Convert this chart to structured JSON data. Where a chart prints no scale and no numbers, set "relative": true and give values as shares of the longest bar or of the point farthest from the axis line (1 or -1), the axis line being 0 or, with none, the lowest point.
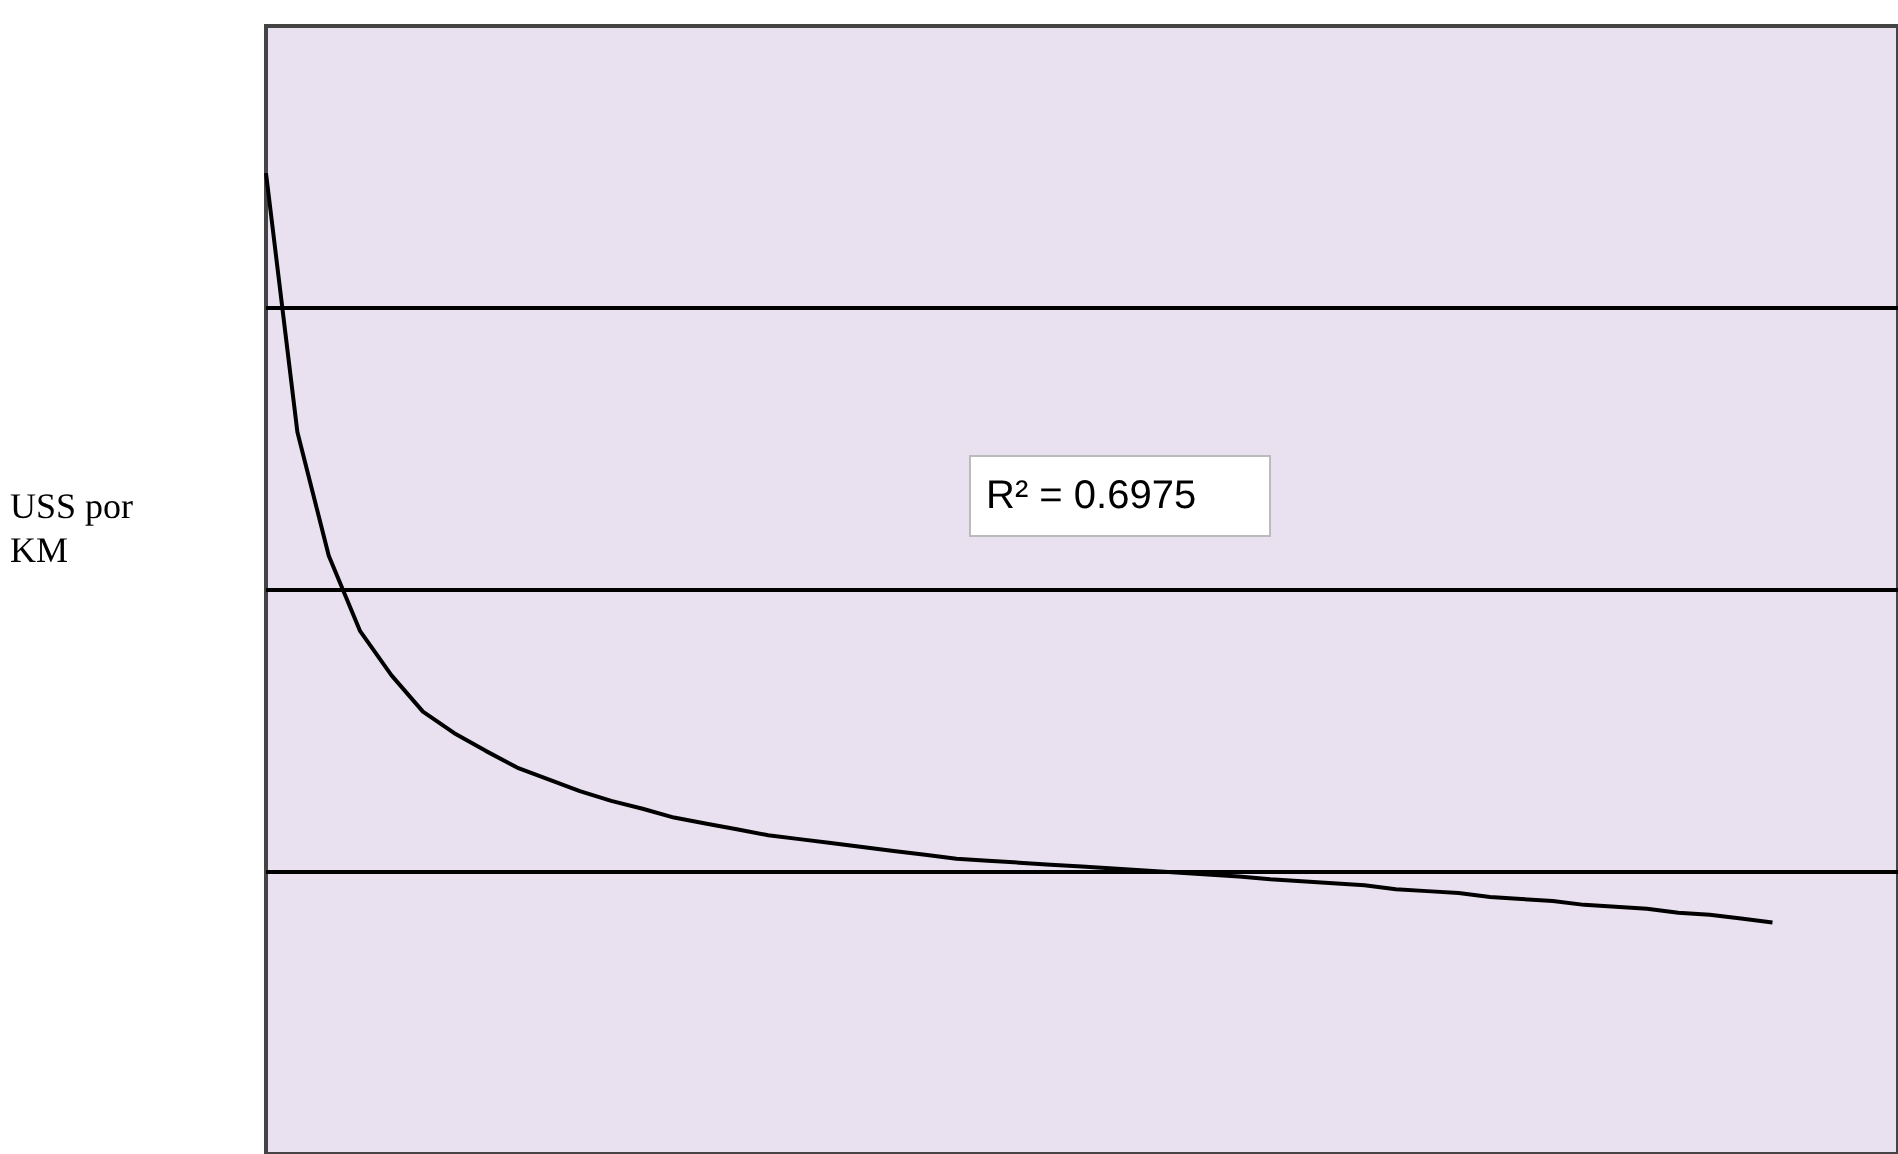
{
  "chart_data": {
    "type": "line",
    "relative": true,
    "ylabel": "USS por KM",
    "grid": "y",
    "marker": "none",
    "line_style": "solid",
    "annotations": [
      "R² = 0.6975"
    ],
    "categories": [
      null,
      null,
      null,
      null,
      null,
      null,
      null,
      null,
      null,
      null,
      null,
      null,
      null,
      null,
      null,
      null,
      null,
      null,
      null,
      null,
      null,
      null,
      null,
      null,
      null,
      null,
      null,
      null,
      null,
      null,
      null,
      null,
      null,
      null,
      null,
      null,
      null,
      null,
      null,
      null,
      null,
      null,
      null,
      null,
      null,
      null,
      null,
      null,
      null,
      null,
      null,
      null,
      null
    ],
    "series": [
      {
        "color": "#000000",
        "values": [
          1.0,
          0.736,
          0.61,
          0.533,
          0.488,
          0.451,
          0.429,
          0.411,
          0.394,
          0.382,
          0.37,
          0.36,
          0.352,
          0.343,
          0.337,
          0.331,
          0.325,
          0.321,
          0.317,
          0.313,
          0.309,
          0.305,
          0.301,
          0.299,
          0.297,
          0.295,
          0.293,
          0.291,
          0.289,
          0.287,
          0.285,
          0.283,
          0.28,
          0.278,
          0.276,
          0.274,
          0.27,
          0.268,
          0.266,
          0.262,
          0.26,
          0.258,
          0.254,
          0.252,
          0.25,
          0.246,
          0.244,
          0.24,
          0.236,
          null,
          null,
          null,
          null
        ]
      }
    ]
  }
}
